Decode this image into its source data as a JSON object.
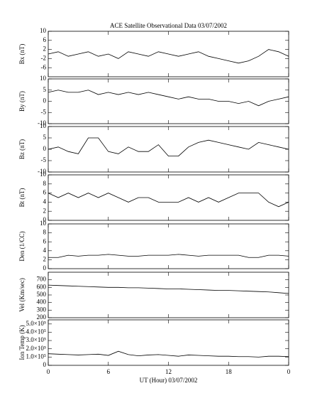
{
  "chart_data": [
    {
      "type": "line",
      "title": "ACE Satellite Observational Data  03/07/2002",
      "ylabel": "Bx (nT)",
      "x": [
        0,
        1,
        2,
        3,
        4,
        5,
        6,
        7,
        8,
        9,
        10,
        11,
        12,
        13,
        14,
        15,
        16,
        17,
        18,
        19,
        20,
        21,
        22,
        23,
        24
      ],
      "xlim": [
        0,
        24
      ],
      "xticks": [
        0,
        6,
        12,
        18,
        {
          "value": 24,
          "label": "0"
        }
      ],
      "ylim": [
        -10,
        10
      ],
      "yticks": [
        -6,
        -2,
        2,
        6,
        10
      ],
      "series": [
        {
          "name": "Bx",
          "color": "#000000",
          "values": [
            0,
            1,
            -1,
            0,
            1,
            -1,
            0,
            -2,
            1,
            0,
            -1,
            1,
            0,
            -1,
            0,
            1,
            -1,
            -2,
            -3,
            -4,
            -3,
            -1,
            2,
            1,
            -1
          ]
        }
      ]
    },
    {
      "type": "line",
      "ylabel": "By (nT)",
      "x": [
        0,
        1,
        2,
        3,
        4,
        5,
        6,
        7,
        8,
        9,
        10,
        11,
        12,
        13,
        14,
        15,
        16,
        17,
        18,
        19,
        20,
        21,
        22,
        23,
        24
      ],
      "xlim": [
        0,
        24
      ],
      "xticks": [
        0,
        6,
        12,
        18,
        {
          "value": 24,
          "label": "0"
        }
      ],
      "ylim": [
        -10,
        10
      ],
      "yticks": [
        -10,
        -5,
        0,
        5,
        10
      ],
      "series": [
        {
          "name": "By",
          "color": "#000000",
          "values": [
            4,
            5,
            4,
            4,
            5,
            3,
            4,
            3,
            4,
            3,
            4,
            3,
            2,
            1,
            2,
            1,
            1,
            0,
            0,
            -1,
            0,
            -2,
            0,
            1,
            2
          ]
        }
      ]
    },
    {
      "type": "line",
      "ylabel": "Bz (nT)",
      "x": [
        0,
        1,
        2,
        3,
        4,
        5,
        6,
        7,
        8,
        9,
        10,
        11,
        12,
        13,
        14,
        15,
        16,
        17,
        18,
        19,
        20,
        21,
        22,
        23,
        24
      ],
      "xlim": [
        0,
        24
      ],
      "xticks": [
        0,
        6,
        12,
        18,
        {
          "value": 24,
          "label": "0"
        }
      ],
      "ylim": [
        -10,
        10
      ],
      "yticks": [
        -10,
        -5,
        0,
        5,
        10
      ],
      "series": [
        {
          "name": "Bz",
          "color": "#000000",
          "values": [
            0,
            1,
            -1,
            -2,
            5,
            5,
            -1,
            -2,
            1,
            -1,
            -1,
            2,
            -3,
            -3,
            1,
            3,
            4,
            3,
            2,
            1,
            0,
            3,
            2,
            1,
            0
          ]
        }
      ]
    },
    {
      "type": "line",
      "ylabel": "Bt (nT)",
      "x": [
        0,
        1,
        2,
        3,
        4,
        5,
        6,
        7,
        8,
        9,
        10,
        11,
        12,
        13,
        14,
        15,
        16,
        17,
        18,
        19,
        20,
        21,
        22,
        23,
        24
      ],
      "xlim": [
        0,
        24
      ],
      "xticks": [
        0,
        6,
        12,
        18,
        {
          "value": 24,
          "label": "0"
        }
      ],
      "ylim": [
        0,
        10
      ],
      "yticks": [
        0,
        2,
        4,
        6,
        8,
        10
      ],
      "series": [
        {
          "name": "Bt",
          "color": "#000000",
          "values": [
            6,
            5,
            6,
            5,
            6,
            5,
            6,
            5,
            4,
            5,
            5,
            4,
            4,
            4,
            5,
            4,
            5,
            4,
            5,
            6,
            6,
            6,
            4,
            3,
            4
          ]
        }
      ]
    },
    {
      "type": "line",
      "ylabel": "Den (1/CC)",
      "x": [
        0,
        1,
        2,
        3,
        4,
        5,
        6,
        7,
        8,
        9,
        10,
        11,
        12,
        13,
        14,
        15,
        16,
        17,
        18,
        19,
        20,
        21,
        22,
        23,
        24
      ],
      "xlim": [
        0,
        24
      ],
      "xticks": [
        0,
        6,
        12,
        18,
        {
          "value": 24,
          "label": "0"
        }
      ],
      "ylim": [
        0,
        10
      ],
      "yticks": [
        0,
        2,
        4,
        6,
        8,
        10
      ],
      "series": [
        {
          "name": "Den",
          "color": "#000000",
          "values": [
            2.5,
            2.5,
            3,
            2.8,
            3,
            3,
            3.2,
            3,
            2.8,
            2.8,
            3,
            3,
            3,
            3.2,
            3,
            2.8,
            3,
            3,
            3,
            3,
            2.5,
            2.5,
            3,
            3,
            2.8
          ]
        }
      ]
    },
    {
      "type": "line",
      "ylabel": "Vel (Km/sec)",
      "x": [
        0,
        1,
        2,
        3,
        4,
        5,
        6,
        7,
        8,
        9,
        10,
        11,
        12,
        13,
        14,
        15,
        16,
        17,
        18,
        19,
        20,
        21,
        22,
        23,
        24
      ],
      "xlim": [
        0,
        24
      ],
      "xticks": [
        0,
        6,
        12,
        18,
        {
          "value": 24,
          "label": "0"
        }
      ],
      "ylim": [
        200,
        800
      ],
      "yticks": [
        200,
        300,
        400,
        500,
        600,
        700
      ],
      "series": [
        {
          "name": "Vel",
          "color": "#000000",
          "values": [
            630,
            625,
            620,
            615,
            610,
            605,
            600,
            600,
            595,
            595,
            590,
            585,
            580,
            580,
            575,
            570,
            565,
            560,
            560,
            555,
            550,
            545,
            540,
            530,
            520
          ]
        }
      ]
    },
    {
      "type": "line",
      "ylabel": "Ion Temp (K)",
      "xlabel": "UT (Hour)  03/07/2002",
      "x": [
        0,
        1,
        2,
        3,
        4,
        5,
        6,
        7,
        8,
        9,
        10,
        11,
        12,
        13,
        14,
        15,
        16,
        17,
        18,
        19,
        20,
        21,
        22,
        23,
        24
      ],
      "xlim": [
        0,
        24
      ],
      "xticks": [
        0,
        6,
        12,
        18,
        {
          "value": 24,
          "label": "0"
        }
      ],
      "ylim": [
        0,
        550000
      ],
      "yticks": [
        0,
        {
          "value": 100000,
          "label": "1.0×10⁵"
        },
        {
          "value": 200000,
          "label": "2.0×10⁵"
        },
        {
          "value": 300000,
          "label": "3.0×10⁵"
        },
        {
          "value": 400000,
          "label": "4.0×10⁵"
        },
        {
          "value": 500000,
          "label": "5.0×10⁵"
        }
      ],
      "series": [
        {
          "name": "Ion Temp",
          "color": "#000000",
          "values": [
            140000,
            135000,
            130000,
            125000,
            130000,
            135000,
            120000,
            170000,
            130000,
            115000,
            125000,
            130000,
            120000,
            110000,
            125000,
            120000,
            115000,
            110000,
            110000,
            105000,
            105000,
            100000,
            110000,
            110000,
            105000
          ]
        }
      ]
    }
  ]
}
